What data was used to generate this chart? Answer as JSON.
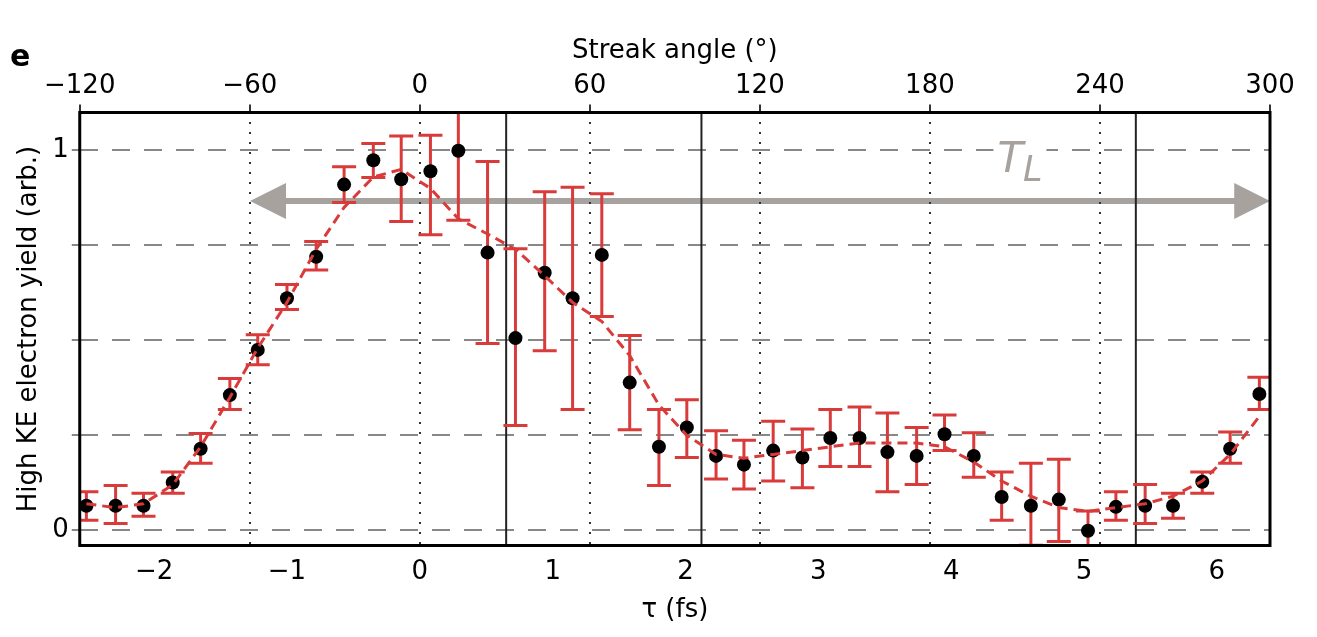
{
  "chart_data": {
    "type": "scatter",
    "title": "e",
    "xlabel": "τ (fs)",
    "ylabel": "High KE electron yield (arb.)",
    "x2label": "Streak angle (°)",
    "xlim": [
      -2.56,
      6.4
    ],
    "xticks": [
      -2,
      -1,
      0,
      1,
      2,
      3,
      4,
      5,
      6
    ],
    "x2lim": [
      -120,
      300
    ],
    "x2ticks": [
      -120,
      -60,
      0,
      60,
      120,
      180,
      240,
      300
    ],
    "ylim": [
      -0.04,
      1.1
    ],
    "yticks": [
      0,
      {
        "value": 0.25,
        "label": null
      },
      {
        "value": 0.5,
        "label": null
      },
      {
        "value": 0.75,
        "label": null
      },
      1
    ],
    "grid": true,
    "legend": false,
    "marker": "circle",
    "x": [
      -2.51,
      -2.29,
      -2.08,
      -1.86,
      -1.65,
      -1.43,
      -1.22,
      -1.0,
      -0.78,
      -0.57,
      -0.35,
      -0.14,
      0.08,
      0.29,
      0.51,
      0.72,
      0.94,
      1.15,
      1.37,
      1.58,
      1.8,
      2.01,
      2.23,
      2.44,
      2.66,
      2.88,
      3.09,
      3.31,
      3.52,
      3.74,
      3.95,
      4.17,
      4.38,
      4.6,
      4.81,
      5.03,
      5.24,
      5.46,
      5.67,
      5.89,
      6.1,
      6.32
    ],
    "series": [
      {
        "type": "line",
        "color": "#d93a3a",
        "line_style": "dashed",
        "marker": "none",
        "values": [
          0.07,
          0.06,
          0.07,
          0.12,
          0.22,
          0.35,
          0.48,
          0.6,
          0.74,
          0.85,
          0.93,
          0.95,
          0.9,
          0.82,
          0.78,
          0.74,
          0.67,
          0.6,
          0.55,
          0.46,
          0.33,
          0.25,
          0.2,
          0.19,
          0.2,
          0.21,
          0.22,
          0.23,
          0.23,
          0.23,
          0.22,
          0.18,
          0.13,
          0.09,
          0.06,
          0.05,
          0.06,
          0.07,
          0.09,
          0.13,
          0.2,
          0.3
        ]
      },
      {
        "color": "#000000",
        "values": [
          0.065,
          0.065,
          0.065,
          0.126,
          0.215,
          0.356,
          0.475,
          0.611,
          0.72,
          0.91,
          0.974,
          0.924,
          0.945,
          0.999,
          0.731,
          0.506,
          0.678,
          0.611,
          0.725,
          0.389,
          0.22,
          0.271,
          0.196,
          0.173,
          0.21,
          0.192,
          0.243,
          0.243,
          0.206,
          0.196,
          0.253,
          0.196,
          0.088,
          0.065,
          0.081,
          -0.001,
          0.062,
          0.065,
          0.065,
          0.128,
          0.215,
          0.359
        ],
        "errors": [
          [
            0.027,
            0.102
          ],
          [
            0.018,
            0.118
          ],
          [
            0.037,
            0.098
          ],
          [
            0.098,
            0.154
          ],
          [
            0.177,
            0.255
          ],
          [
            0.318,
            0.4
          ],
          [
            0.436,
            0.515
          ],
          [
            0.581,
            0.647
          ],
          [
            0.685,
            0.76
          ],
          [
            0.863,
            0.957
          ],
          [
            0.929,
            1.018
          ],
          [
            0.813,
            1.038
          ],
          [
            0.778,
            1.04
          ],
          [
            0.816,
            1.1
          ],
          [
            0.492,
            0.971
          ],
          [
            0.276,
            0.741
          ],
          [
            0.473,
            0.891
          ],
          [
            0.318,
            0.903
          ],
          [
            0.563,
            0.886
          ],
          [
            0.265,
            0.513
          ],
          [
            0.118,
            0.318
          ],
          [
            0.192,
            0.344
          ],
          [
            0.135,
            0.262
          ],
          [
            0.109,
            0.237
          ],
          [
            0.13,
            0.287
          ],
          [
            0.112,
            0.267
          ],
          [
            0.168,
            0.318
          ],
          [
            0.168,
            0.325
          ],
          [
            0.102,
            0.309
          ],
          [
            0.121,
            0.271
          ],
          [
            0.21,
            0.304
          ],
          [
            0.14,
            0.257
          ],
          [
            0.027,
            0.154
          ],
          [
            -0.039,
            0.177
          ],
          [
            -0.029,
            0.187
          ],
          [
            -0.04,
            0.051
          ],
          [
            0.027,
            0.102
          ],
          [
            0.018,
            0.121
          ],
          [
            0.032,
            0.098
          ],
          [
            0.098,
            0.154
          ],
          [
            0.177,
            0.259
          ],
          [
            0.318,
            0.403
          ]
        ]
      }
    ],
    "ref_lines": [
      {
        "axis": "x",
        "value": 0.65,
        "color": "#222222"
      },
      {
        "axis": "x",
        "value": 2.12,
        "color": "#222222"
      },
      {
        "axis": "x",
        "value": 5.39,
        "color": "#222222"
      }
    ],
    "annotations": [
      "T$_{L}$"
    ]
  }
}
